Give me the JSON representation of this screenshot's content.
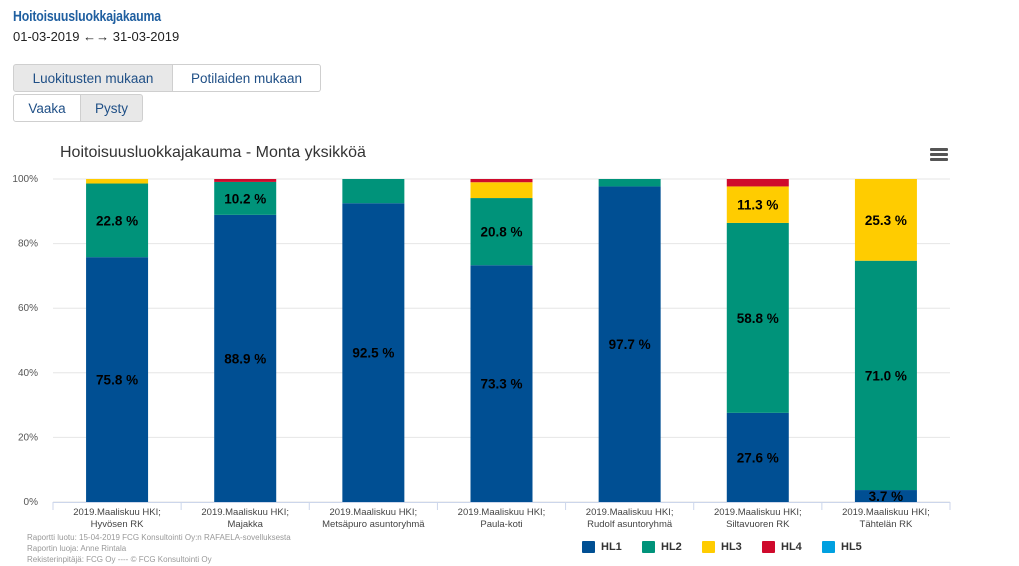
{
  "header": {
    "title": "Hoitoisuusluokkajakauma",
    "date_range": "01-03-2019 ←→ 31-03-2019"
  },
  "toggles": {
    "group1": [
      {
        "label": "Luokitusten mukaan",
        "active": true
      },
      {
        "label": "Potilaiden mukaan",
        "active": false
      }
    ],
    "group2": [
      {
        "label": "Vaaka",
        "active": false
      },
      {
        "label": "Pysty",
        "active": true
      }
    ]
  },
  "menu_icon": "hamburger-menu-icon",
  "footer": {
    "line1": "Raportti luotu: 15-04-2019 FCG Konsultointi Oy:n RAFAELA-sovelluksesta",
    "line2": "Raportin luoja: Anne Rintala",
    "line3": "Rekisterinpitäjä: FCG Oy ---- © FCG Konsultointi Oy"
  },
  "chart_data": {
    "type": "bar",
    "stacked": true,
    "percent": true,
    "title": "Hoitoisuusluokkajakauma - Monta yksikköä",
    "ylim": [
      0,
      100
    ],
    "yticks": [
      "0%",
      "20%",
      "40%",
      "60%",
      "80%",
      "100%"
    ],
    "categories": [
      [
        "2019.Maaliskuu HKI;",
        "Hyvösen RK"
      ],
      [
        "2019.Maaliskuu HKI;",
        "Majakka"
      ],
      [
        "2019.Maaliskuu HKI;",
        "Metsäpuro asuntoryhmä"
      ],
      [
        "2019.Maaliskuu HKI;",
        "Paula-koti"
      ],
      [
        "2019.Maaliskuu HKI;",
        "Rudolf asuntoryhmä"
      ],
      [
        "2019.Maaliskuu HKI;",
        "Siltavuoren RK"
      ],
      [
        "2019.Maaliskuu HKI;",
        "Tähtelän RK"
      ]
    ],
    "series": [
      {
        "name": "HL1",
        "color": "#004f93",
        "values": [
          75.8,
          88.9,
          92.5,
          73.3,
          97.7,
          27.6,
          3.7
        ]
      },
      {
        "name": "HL2",
        "color": "#00937a",
        "values": [
          22.8,
          10.2,
          7.5,
          20.8,
          2.3,
          58.8,
          71.0
        ]
      },
      {
        "name": "HL3",
        "color": "#ffcc00",
        "values": [
          1.4,
          0.0,
          0.0,
          4.9,
          0.0,
          11.3,
          25.3
        ]
      },
      {
        "name": "HL4",
        "color": "#cf0a2c",
        "values": [
          0.0,
          0.9,
          0.0,
          1.0,
          0.0,
          2.3,
          0.0
        ]
      },
      {
        "name": "HL5",
        "color": "#00a0e0",
        "values": [
          0.0,
          0.0,
          0.0,
          0.0,
          0.0,
          0.0,
          0.0
        ]
      }
    ],
    "data_labels": [
      [
        "75.8 %",
        "22.8 %",
        null,
        null,
        null
      ],
      [
        "88.9 %",
        "10.2 %",
        null,
        null,
        null
      ],
      [
        "92.5 %",
        null,
        null,
        null,
        null
      ],
      [
        "73.3 %",
        "20.8 %",
        null,
        null,
        null
      ],
      [
        "97.7 %",
        null,
        null,
        null,
        null
      ],
      [
        "27.6 %",
        "58.8 %",
        "11.3 %",
        null,
        null
      ],
      [
        "3.7 %",
        "71.0 %",
        "25.3 %",
        null,
        null
      ]
    ],
    "grid": true,
    "legend_position": "bottom-right"
  }
}
